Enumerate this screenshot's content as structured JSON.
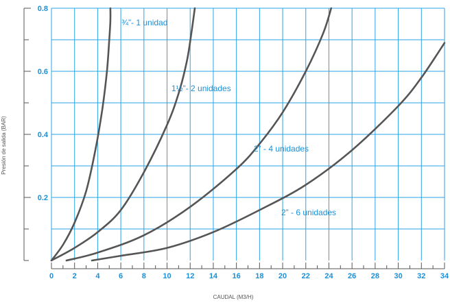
{
  "chart_data": {
    "type": "line",
    "xlabel": "CAUDAL (M3/H)",
    "ylabel": "Presión de salida  (BAR)",
    "xlim": [
      0,
      34
    ],
    "ylim": [
      0,
      0.8
    ],
    "x_ticks": [
      "0",
      "2",
      "4",
      "6",
      "8",
      "10",
      "12",
      "14",
      "16",
      "18",
      "20",
      "22",
      "24",
      "26",
      "28",
      "30",
      "32",
      "34"
    ],
    "y_ticks": [
      "0.2",
      "0.4",
      "0.6",
      "0.8"
    ],
    "grid": true,
    "colors": {
      "line": "#555555",
      "grid": "#29a3e6",
      "label": "#1a8fd8",
      "axis": "#555555"
    },
    "series": [
      {
        "name": "¾”- 1 unidad",
        "x": [
          0,
          1,
          2,
          3,
          3.8,
          4.4,
          4.8,
          5.0,
          5.1,
          5.1
        ],
        "y": [
          0.0,
          0.05,
          0.12,
          0.22,
          0.35,
          0.48,
          0.6,
          0.7,
          0.76,
          0.8
        ]
      },
      {
        "name": "1½”- 2 unidades",
        "x": [
          0,
          2,
          4,
          6,
          8,
          10,
          11,
          11.7,
          12.1,
          12.4
        ],
        "y": [
          0.0,
          0.04,
          0.09,
          0.16,
          0.28,
          0.43,
          0.53,
          0.63,
          0.72,
          0.8
        ]
      },
      {
        "name": "2” - 4 unidades",
        "x": [
          1.3,
          4,
          8,
          12,
          16,
          18,
          20,
          22,
          23.5,
          24.2
        ],
        "y": [
          0.0,
          0.025,
          0.08,
          0.17,
          0.29,
          0.37,
          0.47,
          0.6,
          0.72,
          0.8
        ]
      },
      {
        "name": "2” - 6 unidades",
        "x": [
          3.5,
          6,
          10,
          14,
          18,
          22,
          26,
          30,
          32,
          34
        ],
        "y": [
          0.0,
          0.015,
          0.04,
          0.09,
          0.16,
          0.24,
          0.35,
          0.49,
          0.58,
          0.69
        ]
      }
    ]
  }
}
